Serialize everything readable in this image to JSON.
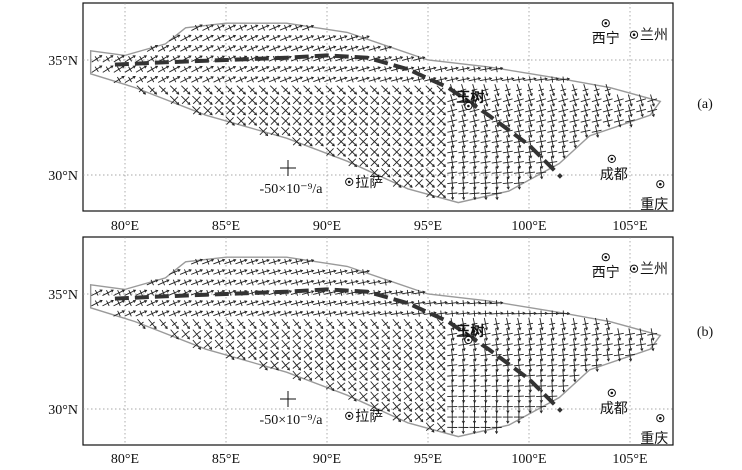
{
  "panels": [
    {
      "tag": "(a)",
      "y_ticks": [
        "35°N",
        "30°N"
      ],
      "x_ticks": [
        "80°E",
        "85°E",
        "90°E",
        "95°E",
        "100°E",
        "105°E"
      ],
      "cities": [
        {
          "key": "xining",
          "label": "西宁",
          "lon": 103.8,
          "lat": 36.6
        },
        {
          "key": "lanzhou",
          "label": "兰州",
          "lon": 105.2,
          "lat": 36.1
        },
        {
          "key": "yushu",
          "label": "玉树",
          "lon": 97.0,
          "lat": 33.0
        },
        {
          "key": "chengdu",
          "label": "成都",
          "lon": 104.1,
          "lat": 30.7
        },
        {
          "key": "lhasa",
          "label": "拉萨",
          "lon": 91.1,
          "lat": 29.7
        },
        {
          "key": "chongqing",
          "label": "重庆",
          "lon": 106.5,
          "lat": 29.6
        }
      ],
      "scale_label": "-50×10⁻⁹/a"
    },
    {
      "tag": "(b)",
      "y_ticks": [
        "35°N",
        "30°N"
      ],
      "x_ticks": [
        "80°E",
        "85°E",
        "90°E",
        "95°E",
        "100°E",
        "105°E"
      ],
      "cities": [
        {
          "key": "xining",
          "label": "西宁",
          "lon": 103.8,
          "lat": 36.6
        },
        {
          "key": "lanzhou",
          "label": "兰州",
          "lon": 105.2,
          "lat": 36.1
        },
        {
          "key": "yushu",
          "label": "玉树",
          "lon": 97.0,
          "lat": 33.0
        },
        {
          "key": "chengdu",
          "label": "成都",
          "lon": 104.1,
          "lat": 30.7
        },
        {
          "key": "lhasa",
          "label": "拉萨",
          "lon": 91.1,
          "lat": 29.7
        },
        {
          "key": "chongqing",
          "label": "重庆",
          "lon": 106.5,
          "lat": 29.6
        }
      ],
      "scale_label": "-50×10⁻⁹/a"
    }
  ],
  "map": {
    "lon_range": [
      78,
      107
    ],
    "lat_range": [
      28.5,
      37.5
    ],
    "grid_lon": [
      80,
      85,
      90,
      95,
      100,
      105
    ],
    "grid_lat": [
      30,
      35
    ],
    "region_outline": [
      [
        78.3,
        35.4
      ],
      [
        80,
        35.2
      ],
      [
        82,
        35.7
      ],
      [
        83,
        36.4
      ],
      [
        85,
        36.6
      ],
      [
        88,
        36.6
      ],
      [
        91,
        36.2
      ],
      [
        93,
        35.6
      ],
      [
        95,
        35.0
      ],
      [
        98,
        34.7
      ],
      [
        101.5,
        34.2
      ],
      [
        104,
        33.8
      ],
      [
        106.5,
        33.2
      ],
      [
        106,
        32.6
      ],
      [
        103,
        31.7
      ],
      [
        101.5,
        30.5
      ],
      [
        99,
        29.3
      ],
      [
        96.5,
        28.8
      ],
      [
        94,
        29.4
      ],
      [
        91,
        30.6
      ],
      [
        88,
        31.6
      ],
      [
        84,
        32.6
      ],
      [
        80.5,
        33.8
      ],
      [
        78.3,
        34.4
      ]
    ],
    "fault_trace": [
      [
        79.5,
        34.8
      ],
      [
        82,
        34.9
      ],
      [
        85,
        35.0
      ],
      [
        88,
        35.1
      ],
      [
        90,
        35.2
      ],
      [
        92,
        35.1
      ],
      [
        94,
        34.6
      ],
      [
        96,
        33.8
      ],
      [
        98,
        32.6
      ],
      [
        100,
        31.3
      ],
      [
        101.6,
        29.9
      ]
    ],
    "colors": {
      "grid": "#8a8a8a",
      "outline": "#9a9a9a",
      "fault": "#333333",
      "arrow": "#222222"
    }
  }
}
